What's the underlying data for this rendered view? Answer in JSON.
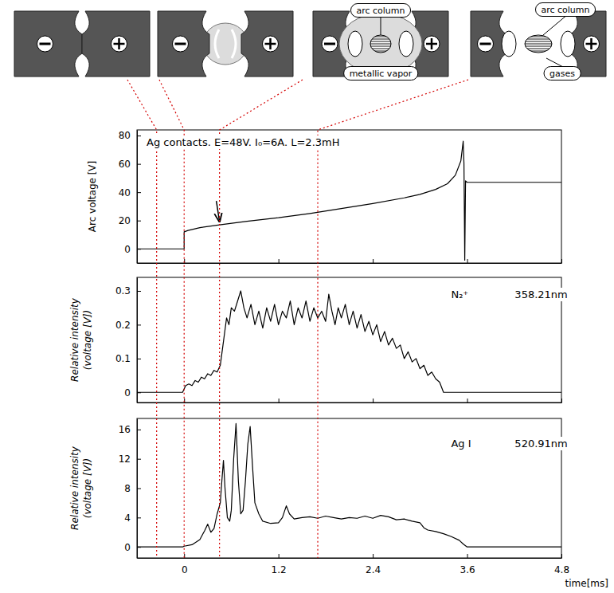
{
  "diagram": {
    "panels": [
      [],
      [],
      [
        "arc column",
        "metallic vapor"
      ],
      [
        "arc column",
        "gases"
      ]
    ],
    "phase_times": [
      -0.35,
      0,
      0.45,
      1.7
    ]
  },
  "chart_data": [
    {
      "type": "line",
      "y_label": "Arc voltage [V]",
      "annotations": [
        "Ag contacts. E=48V. I₀=6A. L=2.3mH"
      ],
      "arrow": {
        "x": 0.45,
        "y": 17
      },
      "x": [
        -0.6,
        0,
        0,
        0.05,
        0.2,
        0.45,
        0.8,
        1.2,
        1.6,
        2.0,
        2.4,
        2.8,
        3.0,
        3.2,
        3.35,
        3.45,
        3.52,
        3.55,
        3.56,
        3.57,
        3.58,
        3.6,
        4.8
      ],
      "values": [
        0,
        0,
        12,
        13,
        15,
        17,
        19.5,
        22,
        25,
        28.5,
        32,
        36,
        38.5,
        42,
        46,
        52,
        62,
        76,
        60,
        -8,
        48,
        47,
        47
      ],
      "color": "#000000",
      "grid": false,
      "tick_labels": "y",
      "xlim": [
        -0.6,
        4.8
      ],
      "xticks": [
        0,
        1.2,
        2.4,
        3.6,
        4.8
      ],
      "ylim": [
        -10,
        84
      ],
      "yticks": [
        0,
        20,
        40,
        60,
        80
      ]
    },
    {
      "type": "line",
      "y_label": "Relative intensity (voltage [V])",
      "annotations": [
        "N₂⁺",
        "358.21nm"
      ],
      "x": [
        -0.6,
        -0.02,
        0,
        0.02,
        0.06,
        0.1,
        0.14,
        0.18,
        0.22,
        0.26,
        0.3,
        0.34,
        0.38,
        0.42,
        0.46,
        0.5,
        0.54,
        0.57,
        0.6,
        0.64,
        0.68,
        0.72,
        0.76,
        0.8,
        0.85,
        0.9,
        0.95,
        1.0,
        1.05,
        1.1,
        1.15,
        1.2,
        1.25,
        1.3,
        1.35,
        1.4,
        1.45,
        1.5,
        1.55,
        1.6,
        1.65,
        1.7,
        1.75,
        1.8,
        1.84,
        1.88,
        1.92,
        1.96,
        2.0,
        2.05,
        2.1,
        2.15,
        2.2,
        2.25,
        2.3,
        2.35,
        2.4,
        2.45,
        2.5,
        2.55,
        2.6,
        2.65,
        2.7,
        2.75,
        2.8,
        2.85,
        2.9,
        2.95,
        3.0,
        3.05,
        3.1,
        3.15,
        3.2,
        3.25,
        3.3,
        4.8
      ],
      "values": [
        0,
        0,
        0.01,
        0.02,
        0.025,
        0.02,
        0.035,
        0.03,
        0.045,
        0.04,
        0.055,
        0.05,
        0.065,
        0.06,
        0.08,
        0.15,
        0.22,
        0.2,
        0.25,
        0.24,
        0.27,
        0.3,
        0.25,
        0.22,
        0.26,
        0.2,
        0.24,
        0.19,
        0.25,
        0.21,
        0.26,
        0.2,
        0.24,
        0.22,
        0.27,
        0.2,
        0.25,
        0.22,
        0.27,
        0.21,
        0.25,
        0.22,
        0.24,
        0.21,
        0.29,
        0.24,
        0.2,
        0.25,
        0.22,
        0.26,
        0.2,
        0.24,
        0.19,
        0.23,
        0.18,
        0.21,
        0.17,
        0.2,
        0.15,
        0.18,
        0.14,
        0.16,
        0.13,
        0.14,
        0.1,
        0.12,
        0.09,
        0.1,
        0.07,
        0.08,
        0.05,
        0.06,
        0.04,
        0.03,
        0,
        0
      ],
      "color": "#000000",
      "grid": false,
      "tick_labels": "y",
      "xlim": [
        -0.6,
        4.8
      ],
      "xticks": [
        0,
        1.2,
        2.4,
        3.6,
        4.8
      ],
      "ylim": [
        -0.03,
        0.34
      ],
      "yticks": [
        0,
        0.1,
        0.2,
        0.3
      ]
    },
    {
      "type": "line",
      "y_label": "Relative intensity (voltage [V])",
      "x_label": "time[ms]",
      "annotations": [
        "Ag I",
        "520.91nm"
      ],
      "x": [
        -0.6,
        -0.02,
        0,
        0.1,
        0.2,
        0.26,
        0.3,
        0.34,
        0.38,
        0.42,
        0.46,
        0.48,
        0.5,
        0.52,
        0.55,
        0.58,
        0.6,
        0.63,
        0.66,
        0.69,
        0.72,
        0.75,
        0.78,
        0.81,
        0.84,
        0.87,
        0.9,
        0.95,
        1.0,
        1.1,
        1.2,
        1.25,
        1.3,
        1.34,
        1.4,
        1.5,
        1.6,
        1.7,
        1.8,
        1.9,
        2.0,
        2.1,
        2.2,
        2.3,
        2.4,
        2.5,
        2.6,
        2.7,
        2.8,
        2.9,
        3.0,
        3.05,
        3.1,
        3.2,
        3.3,
        3.4,
        3.5,
        3.55,
        3.6,
        4.8
      ],
      "values": [
        0,
        0,
        0.1,
        0.3,
        1,
        2.2,
        3.1,
        2,
        2.5,
        4.5,
        6,
        9,
        11.8,
        8,
        4,
        3.5,
        5,
        12,
        16.8,
        9,
        4.5,
        5,
        9,
        14,
        16.4,
        11,
        6,
        4.5,
        3.5,
        3.2,
        3.3,
        4,
        5.6,
        4.5,
        3.8,
        4,
        4.1,
        3.9,
        4.2,
        4,
        3.8,
        4,
        3.9,
        4.2,
        3.9,
        4.3,
        4.1,
        3.7,
        3.8,
        3.5,
        3.3,
        2.6,
        2.3,
        2.1,
        1.8,
        1.4,
        0.9,
        0.4,
        0,
        0
      ],
      "color": "#000000",
      "grid": false,
      "xlim": [
        -0.6,
        4.8
      ],
      "xticks": [
        0,
        1.2,
        2.4,
        3.6,
        4.8
      ],
      "ylim": [
        -1.5,
        17.5
      ],
      "yticks": [
        0,
        4,
        8,
        12,
        16
      ]
    }
  ]
}
